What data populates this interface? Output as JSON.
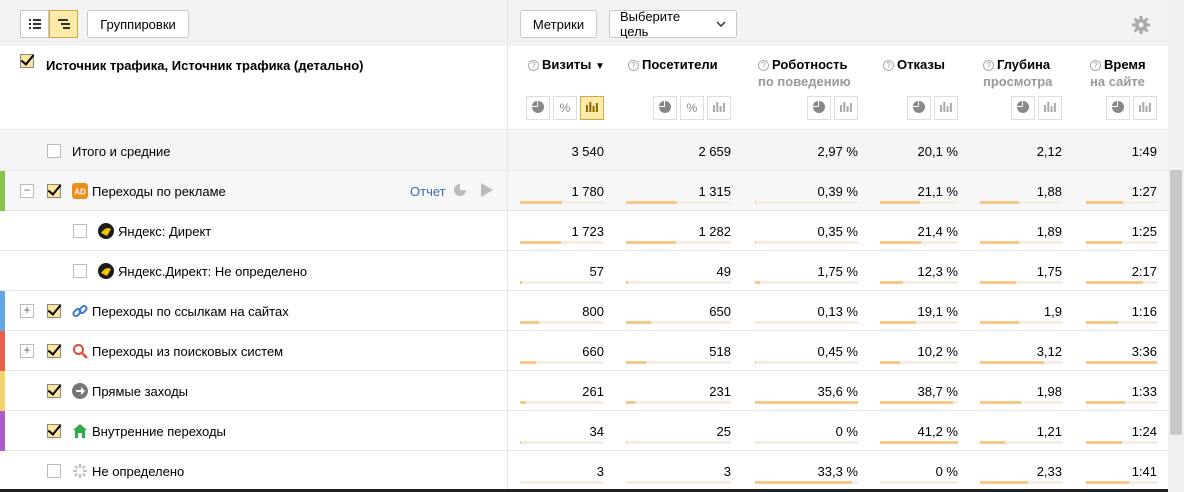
{
  "toolbar": {
    "groupings_label": "Группировки",
    "metrics_label": "Метрики",
    "goal_label": "Выберите цель"
  },
  "header": {
    "title": "Источник трафика, Источник трафика (детально)"
  },
  "columns": [
    {
      "label": "Визиты",
      "sub": "",
      "sort": "▼"
    },
    {
      "label": "Посетители",
      "sub": "",
      "sort": ""
    },
    {
      "label": "Роботность",
      "sub": "по поведению",
      "sort": ""
    },
    {
      "label": "Отказы",
      "sub": "",
      "sort": ""
    },
    {
      "label": "Глубина",
      "sub": "просмотра",
      "sort": ""
    },
    {
      "label": "Время",
      "sub": "на сайте",
      "sort": ""
    }
  ],
  "report_label": "Отчет",
  "rows": [
    {
      "label": "Итого и средние",
      "values": [
        "3 540",
        "2 659",
        "2,97 %",
        "20,1 %",
        "2,12",
        "1:49"
      ],
      "fills": [
        0,
        0,
        0,
        0,
        0,
        0
      ]
    },
    {
      "label": "Переходы по рекламе",
      "values": [
        "1 780",
        "1 315",
        "0,39 %",
        "21,1 %",
        "1,88",
        "1:27"
      ],
      "fills": [
        0.5,
        0.49,
        0.01,
        0.51,
        0.47,
        0.52
      ]
    },
    {
      "label": "Яндекс: Директ",
      "values": [
        "1 723",
        "1 282",
        "0,35 %",
        "21,4 %",
        "1,89",
        "1:25"
      ],
      "fills": [
        0.49,
        0.48,
        0.01,
        0.52,
        0.47,
        0.51
      ]
    },
    {
      "label": "Яндекс.Директ: Не определено",
      "values": [
        "57",
        "49",
        "1,75 %",
        "12,3 %",
        "1,75",
        "2:17"
      ],
      "fills": [
        0.02,
        0.02,
        0.05,
        0.3,
        0.44,
        0.8
      ]
    },
    {
      "label": "Переходы по ссылкам на сайтах",
      "values": [
        "800",
        "650",
        "0,13 %",
        "19,1 %",
        "1,9",
        "1:16"
      ],
      "fills": [
        0.23,
        0.24,
        0.004,
        0.46,
        0.47,
        0.45
      ]
    },
    {
      "label": "Переходы из поисковых систем",
      "values": [
        "660",
        "518",
        "0,45 %",
        "10,2 %",
        "3,12",
        "3:36"
      ],
      "fills": [
        0.19,
        0.19,
        0.013,
        0.25,
        0.78,
        1.0
      ]
    },
    {
      "label": "Прямые заходы",
      "values": [
        "261",
        "231",
        "35,6 %",
        "38,7 %",
        "1,98",
        "1:33"
      ],
      "fills": [
        0.07,
        0.09,
        1.0,
        0.94,
        0.5,
        0.55
      ]
    },
    {
      "label": "Внутренние переходы",
      "values": [
        "34",
        "25",
        "0 %",
        "41,2 %",
        "1,21",
        "1:24"
      ],
      "fills": [
        0.01,
        0.01,
        0,
        1.0,
        0.3,
        0.5
      ]
    },
    {
      "label": "Не определено",
      "values": [
        "3",
        "3",
        "33,3 %",
        "0 %",
        "2,33",
        "1:41"
      ],
      "fills": [
        0,
        0,
        0.94,
        0,
        0.58,
        0.6
      ]
    }
  ],
  "colors": {
    "ads": "#8bc34a",
    "links": "#64a6e0",
    "search": "#e8604c",
    "direct": "#f5d66e",
    "internal": "#b05bc7",
    "fill": "#f5c88a"
  },
  "icons": [
    "ad-icon",
    "yandex-direct-icon",
    "link-icon",
    "search-icon",
    "direct-arrow-icon",
    "home-icon",
    "undefined-spinner-icon"
  ]
}
